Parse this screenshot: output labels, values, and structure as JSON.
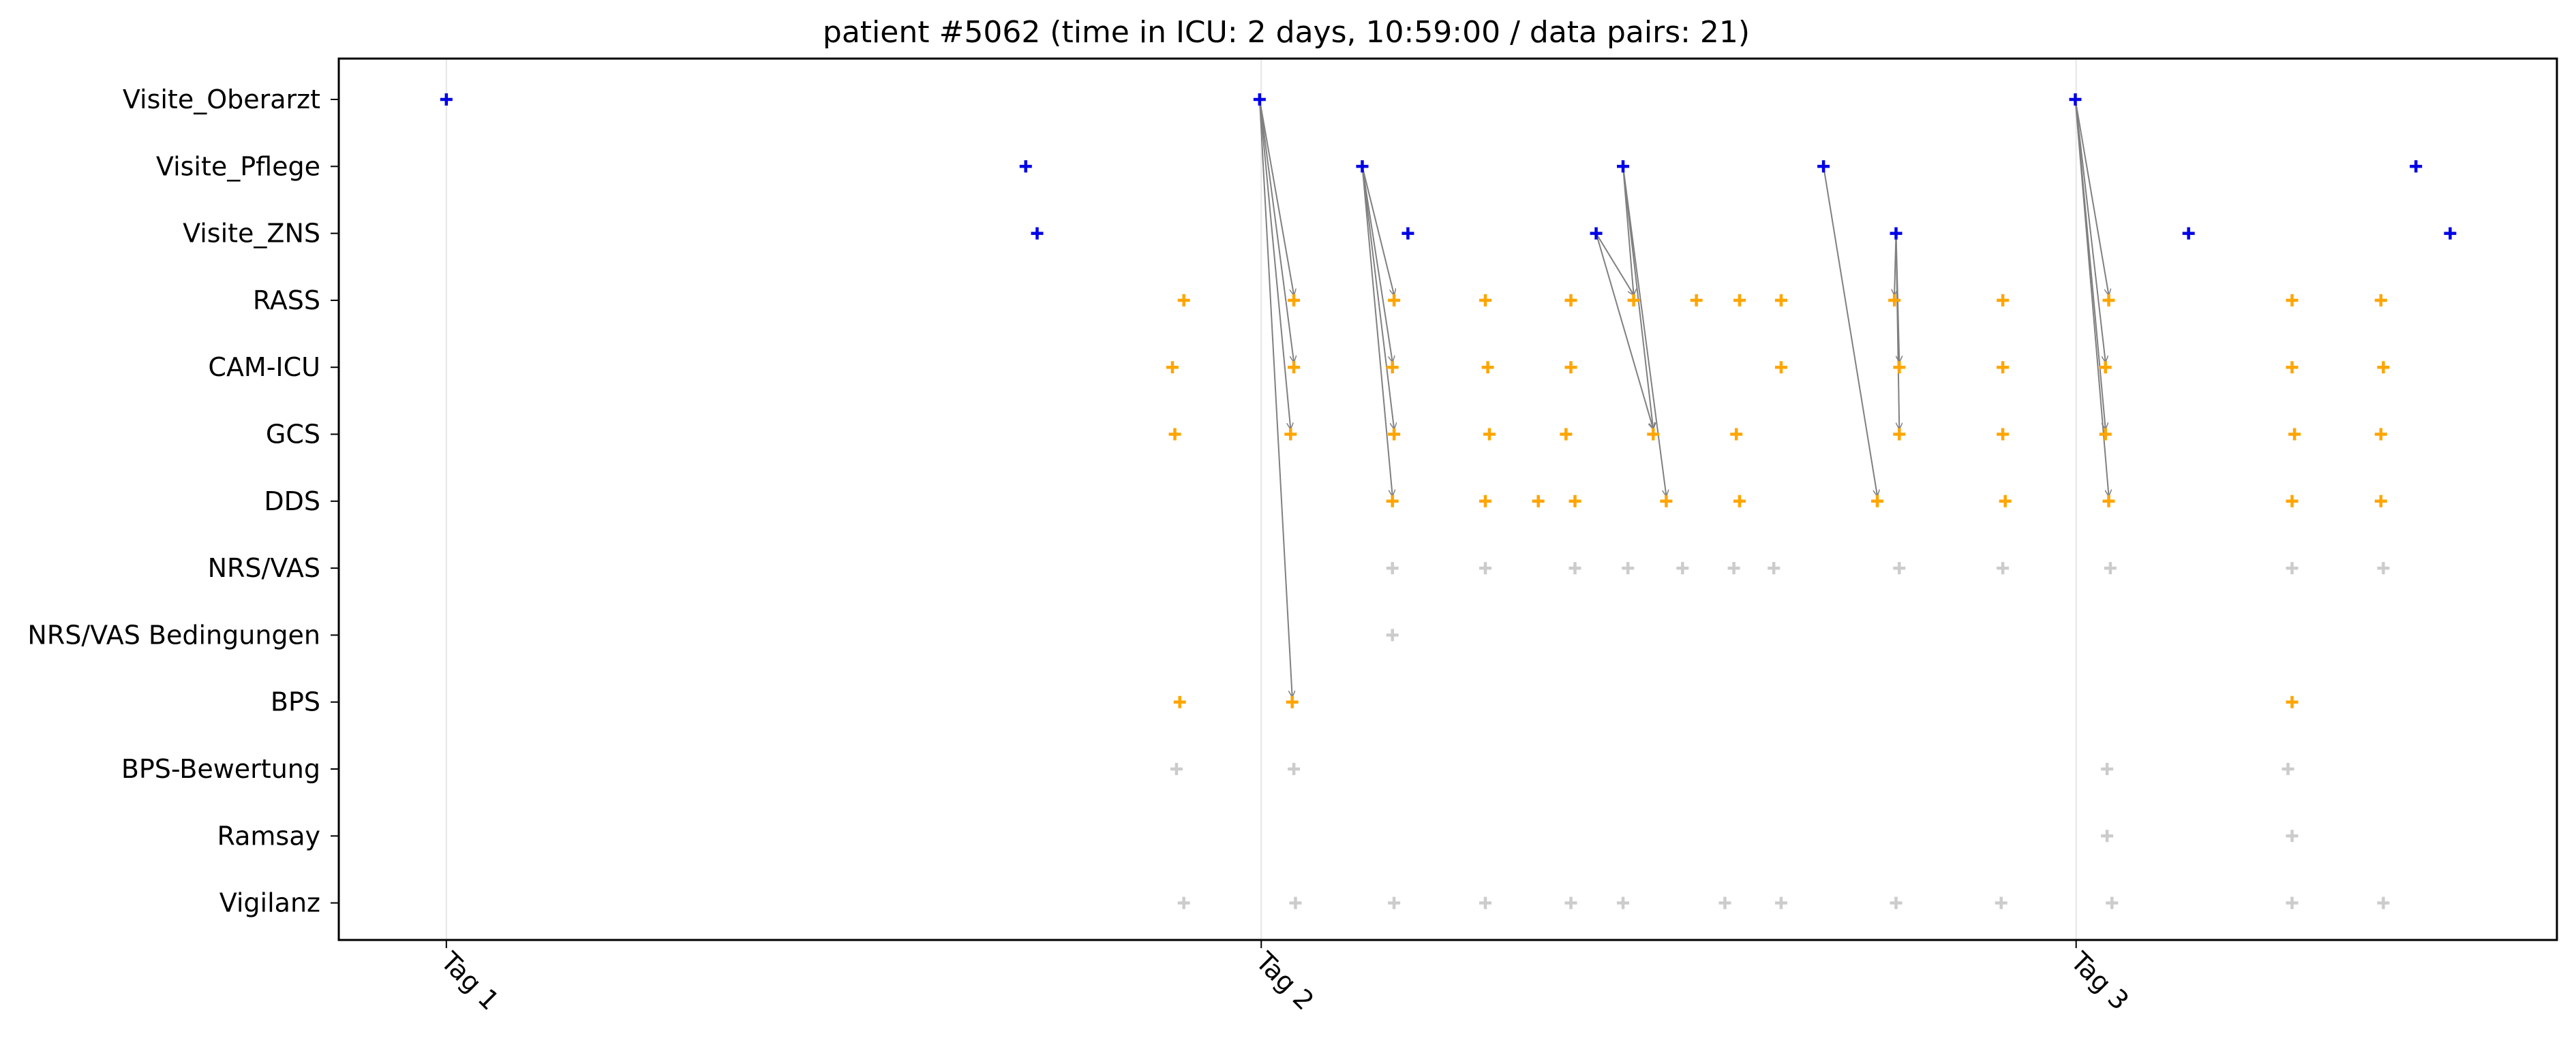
{
  "chart_data": {
    "type": "scatter",
    "title": "patient #5062 (time in ICU: 2 days, 10:59:00 / data pairs: 21)",
    "xlabel": "",
    "ylabel": "",
    "x_unit": "days",
    "xlim": [
      0.868,
      3.59
    ],
    "x_ticks": [
      {
        "value": 1.0,
        "label": "Tag 1"
      },
      {
        "value": 2.0,
        "label": "Tag 2"
      },
      {
        "value": 3.0,
        "label": "Tag 3"
      }
    ],
    "categories": [
      "Visite_Oberarzt",
      "Visite_Pflege",
      "Visite_ZNS",
      "RASS",
      "CAM-ICU",
      "GCS",
      "DDS",
      "NRS/VAS",
      "NRS/VAS Bedingungen",
      "BPS",
      "BPS-Bewertung",
      "Ramsay",
      "Vigilanz"
    ],
    "grid": "vertical lines at day ticks",
    "legend": "none",
    "colors": {
      "visit": "#0000e6",
      "score": "#ffa500",
      "other": "#cccccc",
      "arrow": "#808080"
    },
    "series": [
      {
        "category": "Visite_Oberarzt",
        "color": "#0000e6",
        "x": [
          1.0,
          1.998,
          2.999
        ]
      },
      {
        "category": "Visite_Pflege",
        "color": "#0000e6",
        "x": [
          1.711,
          2.124,
          2.444,
          2.69,
          3.417
        ]
      },
      {
        "category": "Visite_ZNS",
        "color": "#0000e6",
        "x": [
          1.725,
          2.18,
          2.411,
          2.779,
          3.138,
          3.459
        ]
      },
      {
        "category": "RASS",
        "color": "#ffa500",
        "x": [
          1.905,
          2.04,
          2.163,
          2.275,
          2.38,
          2.457,
          2.534,
          2.587,
          2.638,
          2.777,
          2.91,
          3.04,
          3.265,
          3.374
        ]
      },
      {
        "category": "CAM-ICU",
        "color": "#ffa500",
        "x": [
          1.891,
          2.04,
          2.161,
          2.278,
          2.38,
          2.638,
          2.783,
          2.91,
          3.036,
          3.265,
          3.377
        ]
      },
      {
        "category": "GCS",
        "color": "#ffa500",
        "x": [
          1.894,
          2.036,
          2.163,
          2.28,
          2.374,
          2.481,
          2.583,
          2.783,
          2.91,
          3.036,
          3.268,
          3.374
        ]
      },
      {
        "category": "DDS",
        "color": "#ffa500",
        "x": [
          2.161,
          2.275,
          2.34,
          2.385,
          2.497,
          2.587,
          2.756,
          2.913,
          3.04,
          3.265,
          3.374
        ]
      },
      {
        "category": "NRS/VAS",
        "color": "#cccccc",
        "x": [
          2.161,
          2.275,
          2.385,
          2.45,
          2.517,
          2.58,
          2.629,
          2.783,
          2.91,
          3.042,
          3.265,
          3.377
        ]
      },
      {
        "category": "NRS/VAS Bedingungen",
        "color": "#cccccc",
        "x": [
          2.161
        ]
      },
      {
        "category": "BPS",
        "color": "#ffa500",
        "x": [
          1.9,
          2.038,
          3.265
        ]
      },
      {
        "category": "BPS-Bewertung",
        "color": "#cccccc",
        "x": [
          1.896,
          2.04,
          3.038,
          3.26
        ]
      },
      {
        "category": "Ramsay",
        "color": "#cccccc",
        "x": [
          3.038,
          3.265
        ]
      },
      {
        "category": "Vigilanz",
        "color": "#cccccc",
        "x": [
          1.905,
          2.042,
          2.163,
          2.275,
          2.38,
          2.444,
          2.569,
          2.638,
          2.779,
          2.908,
          3.044,
          3.265,
          3.377
        ]
      }
    ],
    "arrows": [
      {
        "from": {
          "category": "Visite_Oberarzt",
          "x": 1.998
        },
        "to": {
          "category": "RASS",
          "x": 2.04
        }
      },
      {
        "from": {
          "category": "Visite_Oberarzt",
          "x": 1.998
        },
        "to": {
          "category": "CAM-ICU",
          "x": 2.04
        }
      },
      {
        "from": {
          "category": "Visite_Oberarzt",
          "x": 1.998
        },
        "to": {
          "category": "GCS",
          "x": 2.036
        }
      },
      {
        "from": {
          "category": "Visite_Oberarzt",
          "x": 1.998
        },
        "to": {
          "category": "BPS",
          "x": 2.038
        }
      },
      {
        "from": {
          "category": "Visite_Pflege",
          "x": 2.124
        },
        "to": {
          "category": "RASS",
          "x": 2.163
        }
      },
      {
        "from": {
          "category": "Visite_Pflege",
          "x": 2.124
        },
        "to": {
          "category": "CAM-ICU",
          "x": 2.161
        }
      },
      {
        "from": {
          "category": "Visite_Pflege",
          "x": 2.124
        },
        "to": {
          "category": "GCS",
          "x": 2.163
        }
      },
      {
        "from": {
          "category": "Visite_Pflege",
          "x": 2.124
        },
        "to": {
          "category": "DDS",
          "x": 2.161
        }
      },
      {
        "from": {
          "category": "Visite_Pflege",
          "x": 2.444
        },
        "to": {
          "category": "RASS",
          "x": 2.457
        }
      },
      {
        "from": {
          "category": "Visite_Pflege",
          "x": 2.444
        },
        "to": {
          "category": "GCS",
          "x": 2.481
        }
      },
      {
        "from": {
          "category": "Visite_Pflege",
          "x": 2.444
        },
        "to": {
          "category": "DDS",
          "x": 2.497
        }
      },
      {
        "from": {
          "category": "Visite_ZNS",
          "x": 2.411
        },
        "to": {
          "category": "RASS",
          "x": 2.457
        }
      },
      {
        "from": {
          "category": "Visite_ZNS",
          "x": 2.411
        },
        "to": {
          "category": "GCS",
          "x": 2.481
        }
      },
      {
        "from": {
          "category": "Visite_Pflege",
          "x": 2.69
        },
        "to": {
          "category": "DDS",
          "x": 2.756
        }
      },
      {
        "from": {
          "category": "Visite_ZNS",
          "x": 2.779
        },
        "to": {
          "category": "RASS",
          "x": 2.777
        }
      },
      {
        "from": {
          "category": "Visite_ZNS",
          "x": 2.779
        },
        "to": {
          "category": "CAM-ICU",
          "x": 2.783
        }
      },
      {
        "from": {
          "category": "Visite_ZNS",
          "x": 2.779
        },
        "to": {
          "category": "GCS",
          "x": 2.783
        }
      },
      {
        "from": {
          "category": "Visite_Oberarzt",
          "x": 2.999
        },
        "to": {
          "category": "RASS",
          "x": 3.04
        }
      },
      {
        "from": {
          "category": "Visite_Oberarzt",
          "x": 2.999
        },
        "to": {
          "category": "CAM-ICU",
          "x": 3.036
        }
      },
      {
        "from": {
          "category": "Visite_Oberarzt",
          "x": 2.999
        },
        "to": {
          "category": "GCS",
          "x": 3.036
        }
      },
      {
        "from": {
          "category": "Visite_Oberarzt",
          "x": 2.999
        },
        "to": {
          "category": "DDS",
          "x": 3.04
        }
      }
    ]
  }
}
